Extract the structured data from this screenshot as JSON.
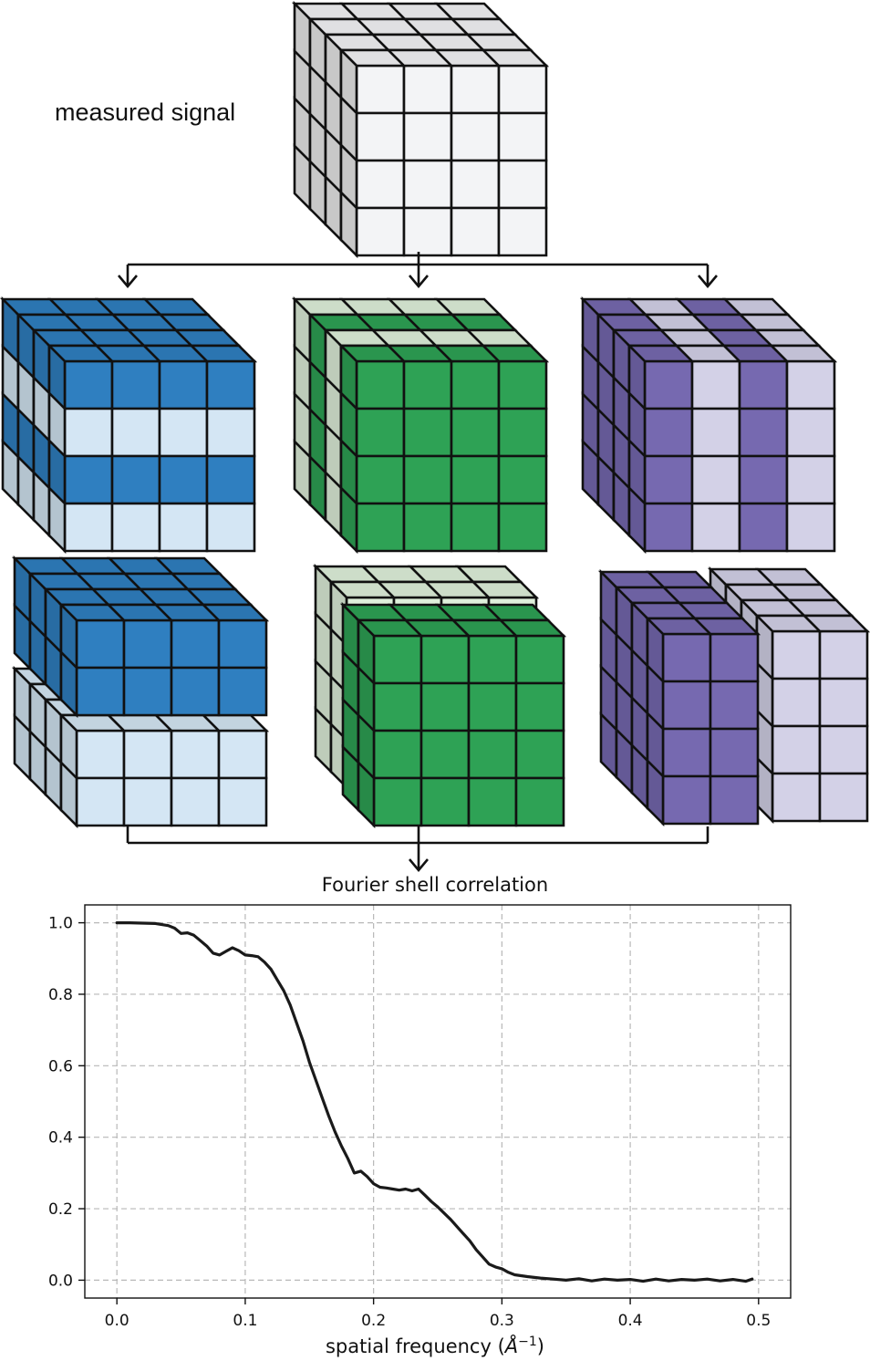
{
  "diagram": {
    "top_label": "measured signal",
    "colors": {
      "outline": "#111111",
      "measured": "#f3f4f6",
      "measured_side": "#c8c8c8",
      "blue_dark": "#2f7fc0",
      "blue_light": "#d4e6f4",
      "green_dark": "#2ea255",
      "green_light": "#dff0db",
      "purple_dark": "#7669b0",
      "purple_light": "#d3d1e7"
    },
    "split_patterns": [
      "alternating rows",
      "alternating slices",
      "alternating columns"
    ]
  },
  "chart": {
    "title": "Fourier shell correlation",
    "xlabel_main": "spatial frequency (",
    "xlabel_unit": "Å",
    "xlabel_exp": "−1",
    "xlabel_close": ")"
  },
  "chart_data": {
    "type": "line",
    "title": "Fourier shell correlation",
    "xlabel": "spatial frequency (Å⁻¹)",
    "ylabel": "",
    "xlim": [
      -0.025,
      0.525
    ],
    "ylim": [
      -0.05,
      1.05
    ],
    "xticks": [
      "0.0",
      "0.1",
      "0.2",
      "0.3",
      "0.4",
      "0.5"
    ],
    "yticks": [
      "0.0",
      "0.2",
      "0.4",
      "0.6",
      "0.8",
      "1.0"
    ],
    "grid": true,
    "line_color": "#1a1a1a",
    "series": [
      {
        "x": [
          0.0,
          0.01,
          0.02,
          0.03,
          0.04,
          0.045,
          0.05,
          0.055,
          0.06,
          0.065,
          0.07,
          0.075,
          0.08,
          0.085,
          0.09,
          0.095,
          0.1,
          0.105,
          0.11,
          0.115,
          0.12,
          0.125,
          0.13,
          0.135,
          0.14,
          0.145,
          0.15,
          0.155,
          0.16,
          0.165,
          0.17,
          0.175,
          0.18,
          0.185,
          0.19,
          0.195,
          0.2,
          0.205,
          0.21,
          0.215,
          0.22,
          0.225,
          0.23,
          0.235,
          0.24,
          0.245,
          0.25,
          0.26,
          0.27,
          0.275,
          0.28,
          0.285,
          0.29,
          0.295,
          0.3,
          0.305,
          0.31,
          0.32,
          0.33,
          0.34,
          0.35,
          0.36,
          0.37,
          0.38,
          0.39,
          0.4,
          0.41,
          0.42,
          0.43,
          0.44,
          0.45,
          0.46,
          0.47,
          0.48,
          0.49,
          0.495
        ],
        "y": [
          1.0,
          1.0,
          0.999,
          0.998,
          0.992,
          0.985,
          0.97,
          0.972,
          0.965,
          0.95,
          0.935,
          0.915,
          0.91,
          0.92,
          0.93,
          0.922,
          0.91,
          0.908,
          0.905,
          0.89,
          0.87,
          0.84,
          0.81,
          0.77,
          0.72,
          0.67,
          0.61,
          0.56,
          0.51,
          0.46,
          0.415,
          0.375,
          0.34,
          0.3,
          0.305,
          0.29,
          0.27,
          0.26,
          0.258,
          0.255,
          0.252,
          0.255,
          0.25,
          0.255,
          0.238,
          0.22,
          0.205,
          0.17,
          0.13,
          0.11,
          0.085,
          0.065,
          0.045,
          0.037,
          0.032,
          0.022,
          0.015,
          0.01,
          0.006,
          0.003,
          0.0,
          0.004,
          -0.002,
          0.003,
          0.0,
          0.002,
          -0.003,
          0.003,
          -0.002,
          0.002,
          0.0,
          0.003,
          -0.002,
          0.002,
          -0.003,
          0.003
        ]
      }
    ]
  }
}
